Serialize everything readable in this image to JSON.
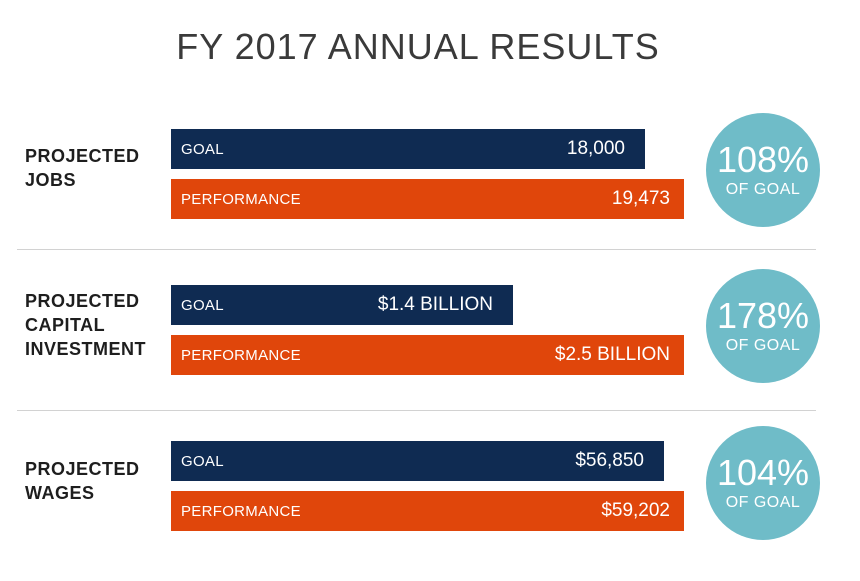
{
  "chart_data": {
    "type": "bar",
    "title": "FY 2017 ANNUAL RESULTS",
    "scale_max": 27500,
    "categories": [
      "PROJECTED JOBS",
      "PROJECTED CAPITAL INVESTMENT",
      "PROJECTED WAGES"
    ],
    "groups": [
      {
        "label_lines": [
          "PROJECTED",
          "JOBS"
        ],
        "goal": {
          "name": "GOAL",
          "value": 18000,
          "display": "18,000"
        },
        "performance": {
          "name": "PERFORMANCE",
          "value": 19473,
          "display": "19,473"
        },
        "percent": "108%",
        "percent_label": "OF GOAL"
      },
      {
        "label_lines": [
          "PROJECTED",
          "CAPITAL",
          "INVESTMENT"
        ],
        "goal": {
          "name": "GOAL",
          "value": 1.4,
          "display": "$1.4 BILLION"
        },
        "performance": {
          "name": "PERFORMANCE",
          "value": 2.5,
          "display": "$2.5 BILLION"
        },
        "percent": "178%",
        "percent_label": "OF GOAL"
      },
      {
        "label_lines": [
          "PROJECTED",
          "WAGES"
        ],
        "goal": {
          "name": "GOAL",
          "value": 56850,
          "display": "$56,850"
        },
        "performance": {
          "name": "PERFORMANCE",
          "value": 59202,
          "display": "$59,202"
        },
        "percent": "104%",
        "percent_label": "OF GOAL"
      }
    ],
    "colors": {
      "goal": "#0f2b52",
      "performance": "#e0460b",
      "circle": "#6fbcc8"
    }
  }
}
